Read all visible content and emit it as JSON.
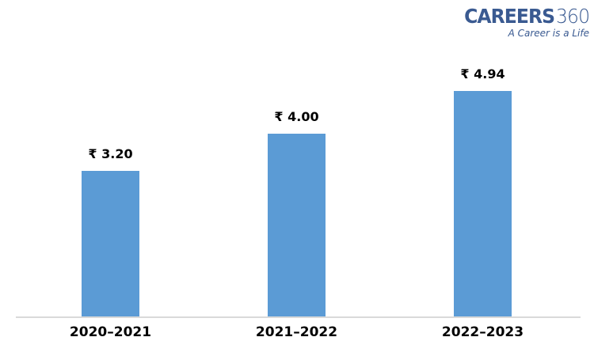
{
  "logo": {
    "brand_bold": "CAREERS",
    "brand_light": "360",
    "tagline": "A Career is a Life",
    "color": "#3a5a91"
  },
  "chart_data": {
    "type": "bar",
    "title": "",
    "categories": [
      "2020–2021",
      "2021–2022",
      "2022–2023"
    ],
    "values": [
      3.2,
      4.0,
      4.94
    ],
    "value_labels": [
      "₹ 3.20",
      "₹ 4.00",
      "₹ 4.94"
    ],
    "currency_symbol": "₹",
    "xlabel": "",
    "ylabel": "",
    "ylim": [
      0,
      5.9
    ],
    "grid": false,
    "legend": false,
    "bar_color": "#5b9bd5",
    "axis_line_color": "#d9d9d9",
    "label_color": "#000000",
    "background_color": "#ffffff"
  }
}
